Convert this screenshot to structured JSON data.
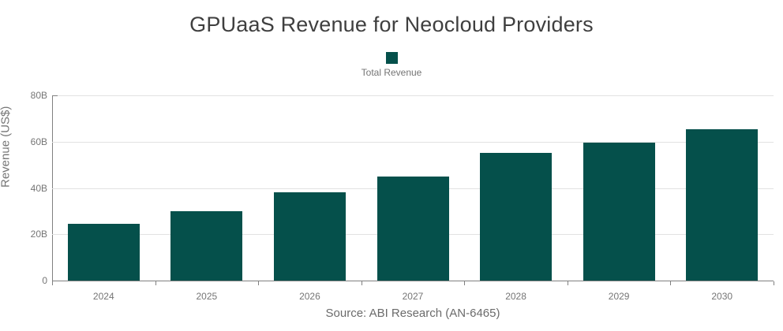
{
  "title": "GPUaaS Revenue for Neocloud Providers",
  "legend": {
    "items": [
      {
        "label": "Total Revenue",
        "color": "#05504B"
      }
    ]
  },
  "source": "Source: ABI Research (AN-6465)",
  "chart_data": {
    "type": "bar",
    "title": "GPUaaS Revenue for Neocloud Providers",
    "categories": [
      "2024",
      "2025",
      "2026",
      "2027",
      "2028",
      "2029",
      "2030"
    ],
    "series": [
      {
        "name": "Total Revenue",
        "color": "#05504B",
        "values": [
          24.5,
          30,
          38,
          45,
          55,
          59.5,
          65.5
        ]
      }
    ],
    "xlabel": "",
    "ylabel": "Revenue (US$)",
    "ylim": [
      0,
      80
    ],
    "yticks": [
      {
        "value": 0,
        "label": "0"
      },
      {
        "value": 20,
        "label": "20B"
      },
      {
        "value": 40,
        "label": "40B"
      },
      {
        "value": 60,
        "label": "60B"
      },
      {
        "value": 80,
        "label": "80B"
      }
    ],
    "grid": true,
    "legend_position": "top",
    "annotations": [
      "Source: ABI Research (AN-6465)"
    ]
  },
  "colors": {
    "bar": "#05504B",
    "grid": "#e2e2e2",
    "axis": "#808080",
    "tick_label": "#757575",
    "title": "#3f3f3f",
    "source": "#6b6b6b"
  }
}
